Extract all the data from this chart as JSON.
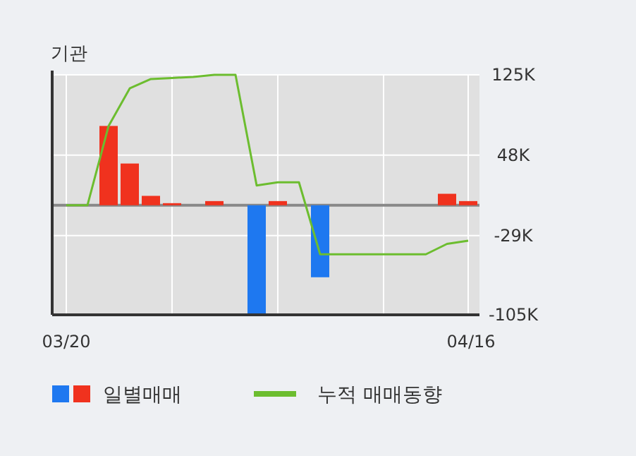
{
  "chart_data": {
    "type": "bar",
    "title": "기관",
    "categories": [
      "03/20",
      null,
      null,
      null,
      null,
      null,
      null,
      null,
      null,
      null,
      null,
      null,
      null,
      null,
      null,
      null,
      null,
      null,
      null,
      "04/16"
    ],
    "ylim": [
      -105000,
      125000
    ],
    "yticks": [
      {
        "value": 125000,
        "label": "125K"
      },
      {
        "value": 48000,
        "label": "48K"
      },
      {
        "value": -29000,
        "label": "-29K"
      },
      {
        "value": -105000,
        "label": "-105K"
      }
    ],
    "grid": true,
    "legend": "bottom",
    "series": [
      {
        "name": "일별매매",
        "colors": [
          null,
          null,
          "#f0321e",
          "#f0321e",
          "#f0321e",
          "#f0321e",
          null,
          "#f0321e",
          null,
          "#1e78f0",
          "#f0321e",
          null,
          "#1e78f0",
          null,
          null,
          null,
          null,
          null,
          "#f0321e",
          "#f0321e"
        ],
        "values": [
          null,
          null,
          76000,
          40000,
          9000,
          2000,
          null,
          4000,
          null,
          -104000,
          4000,
          null,
          -69000,
          null,
          null,
          null,
          null,
          null,
          11000,
          4000
        ]
      },
      {
        "name": "누적 매매동향",
        "type": "line",
        "color": "#6cbd2f",
        "values": [
          0,
          0,
          76000,
          112000,
          121000,
          122000,
          123000,
          125000,
          125000,
          19000,
          22000,
          22000,
          -47000,
          -47000,
          -47000,
          -47000,
          -47000,
          -47000,
          -37000,
          -34000
        ]
      }
    ]
  }
}
